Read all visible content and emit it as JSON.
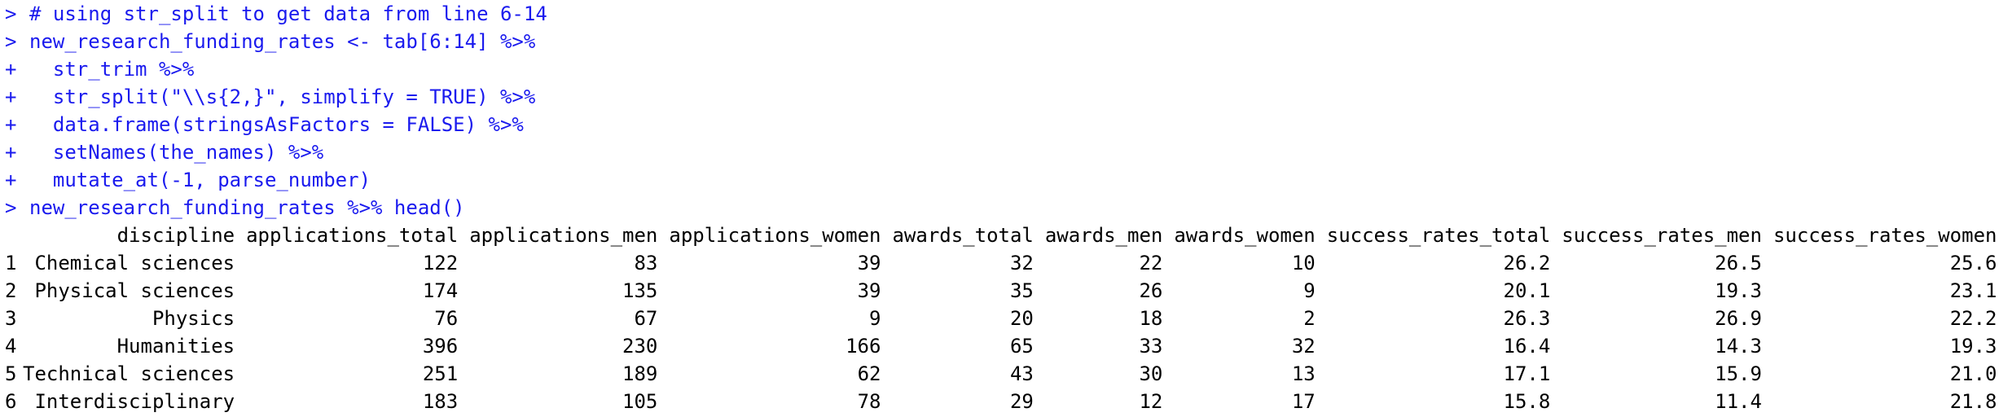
{
  "console": {
    "code_lines": [
      {
        "prompt": ">",
        "text": "# using str_split to get data from line 6-14"
      },
      {
        "prompt": ">",
        "text": "new_research_funding_rates <- tab[6:14] %>%"
      },
      {
        "prompt": "+",
        "text": "  str_trim %>%"
      },
      {
        "prompt": "+",
        "text": "  str_split(\"\\\\s{2,}\", simplify = TRUE) %>%"
      },
      {
        "prompt": "+",
        "text": "  data.frame(stringsAsFactors = FALSE) %>%"
      },
      {
        "prompt": "+",
        "text": "  setNames(the_names) %>%"
      },
      {
        "prompt": "+",
        "text": "  mutate_at(-1, parse_number)"
      },
      {
        "prompt": ">",
        "text": "new_research_funding_rates %>% head()"
      }
    ],
    "table": {
      "columns": [
        "discipline",
        "applications_total",
        "applications_men",
        "applications_women",
        "awards_total",
        "awards_men",
        "awards_women",
        "success_rates_total",
        "success_rates_men",
        "success_rates_women"
      ],
      "rows": [
        [
          "1",
          "Chemical sciences",
          "122",
          "83",
          "39",
          "32",
          "22",
          "10",
          "26.2",
          "26.5",
          "25.6"
        ],
        [
          "2",
          "Physical sciences",
          "174",
          "135",
          "39",
          "35",
          "26",
          "9",
          "20.1",
          "19.3",
          "23.1"
        ],
        [
          "3",
          "Physics",
          "76",
          "67",
          "9",
          "20",
          "18",
          "2",
          "26.3",
          "26.9",
          "22.2"
        ],
        [
          "4",
          "Humanities",
          "396",
          "230",
          "166",
          "65",
          "33",
          "32",
          "16.4",
          "14.3",
          "19.3"
        ],
        [
          "5",
          "Technical sciences",
          "251",
          "189",
          "62",
          "43",
          "30",
          "13",
          "17.1",
          "15.9",
          "21.0"
        ],
        [
          "6",
          "Interdisciplinary",
          "183",
          "105",
          "78",
          "29",
          "12",
          "17",
          "15.8",
          "11.4",
          "21.8"
        ]
      ]
    }
  },
  "colors": {
    "command": "#1a1aee",
    "output": "#000000",
    "background": "#ffffff"
  }
}
